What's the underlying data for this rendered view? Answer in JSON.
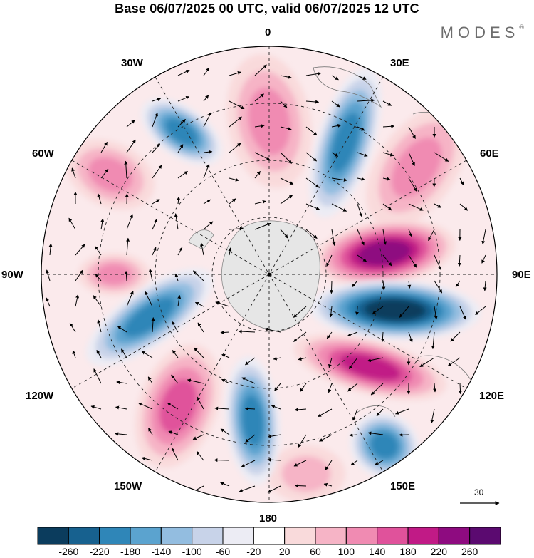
{
  "title": "Base 06/07/2025 00 UTC, valid 06/07/2025 12 UTC",
  "brand": "MODES",
  "brand_mark": "®",
  "longitude_labels": {
    "lon_0": "0",
    "lon_30e": "30E",
    "lon_60e": "60E",
    "lon_90e": "90E",
    "lon_120e": "120E",
    "lon_150e": "150E",
    "lon_180": "180",
    "lon_150w": "150W",
    "lon_120w": "120W",
    "lon_90w": "90W",
    "lon_60w": "60W",
    "lon_30w": "30W"
  },
  "reference_vector_label": "30",
  "colorbar": {
    "colors": [
      "#0b3c5d",
      "#17618f",
      "#2f86b8",
      "#5ba3cf",
      "#93bde0",
      "#c8d3e9",
      "#ececf4",
      "#ffffff",
      "#f9dadb",
      "#f6b4c6",
      "#f08bb2",
      "#e0529b",
      "#c11a86",
      "#8e0b80",
      "#5b0a70"
    ],
    "tick_labels": [
      "-260",
      "-220",
      "-180",
      "-140",
      "-100",
      "-60",
      "-20",
      "20",
      "60",
      "100",
      "140",
      "180",
      "220",
      "260"
    ]
  },
  "map": {
    "projection": "south polar stereographic",
    "anomaly_centers": [
      {
        "name": "lon-0-positive",
        "level": 100
      },
      {
        "name": "lon-30e-negative",
        "level": -180
      },
      {
        "name": "lon-60e-positive",
        "level": 100
      },
      {
        "name": "lon-90e-positive",
        "level": 220
      },
      {
        "name": "lon-100e-negative",
        "level": -260
      },
      {
        "name": "lon-120e-positive",
        "level": 180
      },
      {
        "name": "lon-150e-negative",
        "level": -180
      },
      {
        "name": "lon-170e-positive",
        "level": 60
      },
      {
        "name": "lon-180-negative",
        "level": -180
      },
      {
        "name": "lon-150w-positive",
        "level": 140
      },
      {
        "name": "lon-110w-negative",
        "level": -180
      },
      {
        "name": "lon-90w-positive",
        "level": 100
      },
      {
        "name": "lon-60w-positive",
        "level": 100
      },
      {
        "name": "lon-30w-negative",
        "level": -180
      }
    ]
  }
}
